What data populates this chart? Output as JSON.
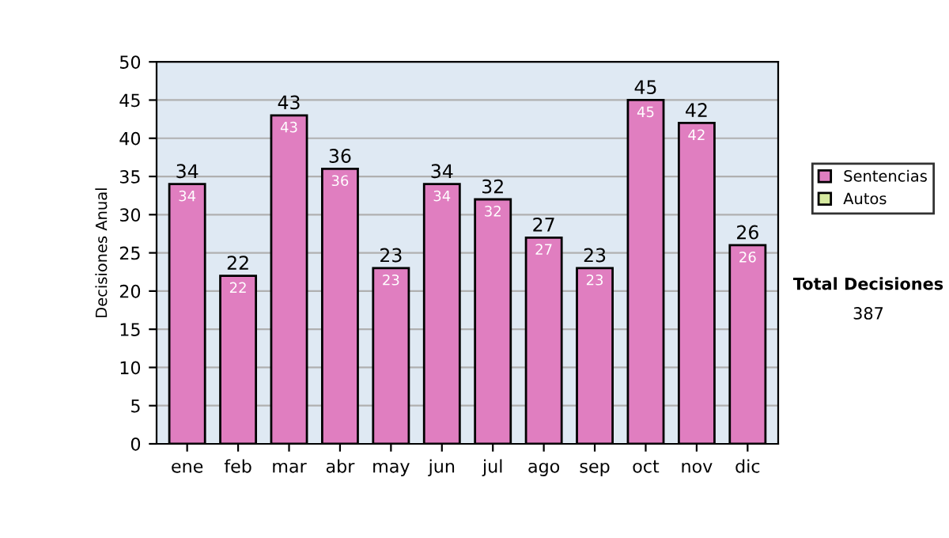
{
  "chart_data": {
    "type": "bar",
    "ylabel": "Decisiones Anual",
    "categories": [
      "ene",
      "feb",
      "mar",
      "abr",
      "may",
      "jun",
      "jul",
      "ago",
      "sep",
      "oct",
      "nov",
      "dic"
    ],
    "series": [
      {
        "name": "Sentencias",
        "color": "#e07ec0",
        "values": [
          34,
          22,
          43,
          36,
          23,
          34,
          32,
          27,
          23,
          45,
          42,
          26
        ],
        "value_labels": [
          "34",
          "22",
          "43",
          "36",
          "23",
          "34",
          "32",
          "27",
          "23",
          "45",
          "42",
          "26"
        ]
      },
      {
        "name": "Autos",
        "color": "#d6eaa0",
        "values": [
          null,
          null,
          null,
          null,
          null,
          null,
          null,
          null,
          null,
          null,
          null,
          null
        ]
      }
    ],
    "stacked": true,
    "totals": [
      "34",
      "22",
      "43",
      "36",
      "23",
      "34",
      "32",
      "27",
      "23",
      "45",
      "42",
      "26"
    ],
    "ylim": [
      0,
      50
    ],
    "yticks": [
      0,
      5,
      10,
      15,
      20,
      25,
      30,
      35,
      40,
      45,
      50
    ],
    "grid": "y",
    "legend": "right",
    "annotations": [
      "Total Decisiones",
      "387"
    ]
  }
}
